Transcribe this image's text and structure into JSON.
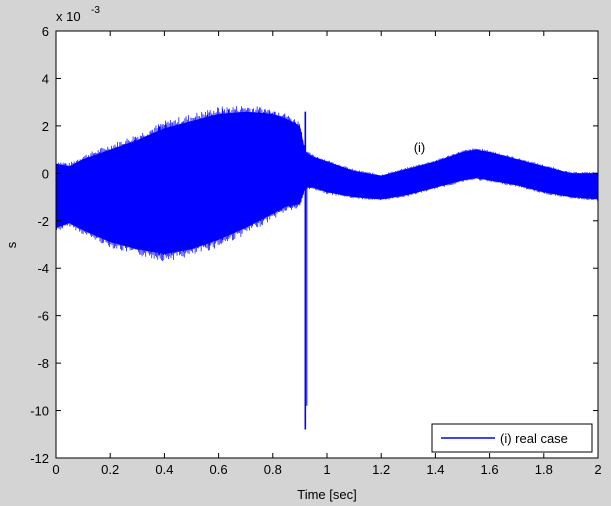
{
  "chart_data": {
    "type": "line",
    "title": "",
    "xlabel": "Time [sec]",
    "ylabel": "s",
    "y_exponent_label": "x 10",
    "y_exponent_power": "-3",
    "xlim": [
      0,
      2
    ],
    "ylim": [
      -12,
      6
    ],
    "x_ticks": [
      "0",
      "0.2",
      "0.4",
      "0.6",
      "0.8",
      "1",
      "1.2",
      "1.4",
      "1.6",
      "1.8",
      "2"
    ],
    "y_ticks": [
      "6",
      "4",
      "2",
      "0",
      "-2",
      "-4",
      "-6",
      "-8",
      "-10",
      "-12"
    ],
    "grid": false,
    "legend_position": "bottom-right",
    "annotation": "(i)",
    "annotation_xy": [
      1.32,
      0.9
    ],
    "series": [
      {
        "name": "(i) real case",
        "color": "#0000ff",
        "envelope": {
          "x": [
            0.0,
            0.05,
            0.1,
            0.2,
            0.3,
            0.4,
            0.5,
            0.6,
            0.7,
            0.8,
            0.85,
            0.9,
            0.92,
            0.95,
            1.0,
            1.1,
            1.2,
            1.3,
            1.4,
            1.5,
            1.55,
            1.6,
            1.7,
            1.8,
            1.9,
            2.0
          ],
          "upper": [
            0.4,
            0.3,
            0.6,
            1.0,
            1.4,
            1.9,
            2.2,
            2.5,
            2.6,
            2.5,
            2.3,
            2.0,
            0.9,
            0.7,
            0.5,
            0.1,
            -0.1,
            0.2,
            0.5,
            0.9,
            1.0,
            0.9,
            0.6,
            0.3,
            0.0,
            0.0
          ],
          "lower": [
            -2.3,
            -2.1,
            -2.4,
            -2.9,
            -3.2,
            -3.4,
            -3.2,
            -2.8,
            -2.3,
            -1.7,
            -1.4,
            -1.3,
            -0.6,
            -0.6,
            -0.8,
            -1.0,
            -1.1,
            -0.9,
            -0.6,
            -0.3,
            -0.2,
            -0.3,
            -0.5,
            -0.8,
            -1.0,
            -1.1
          ]
        },
        "spike": {
          "x": 0.92,
          "min": -10.8,
          "max": 2.6
        }
      }
    ]
  }
}
